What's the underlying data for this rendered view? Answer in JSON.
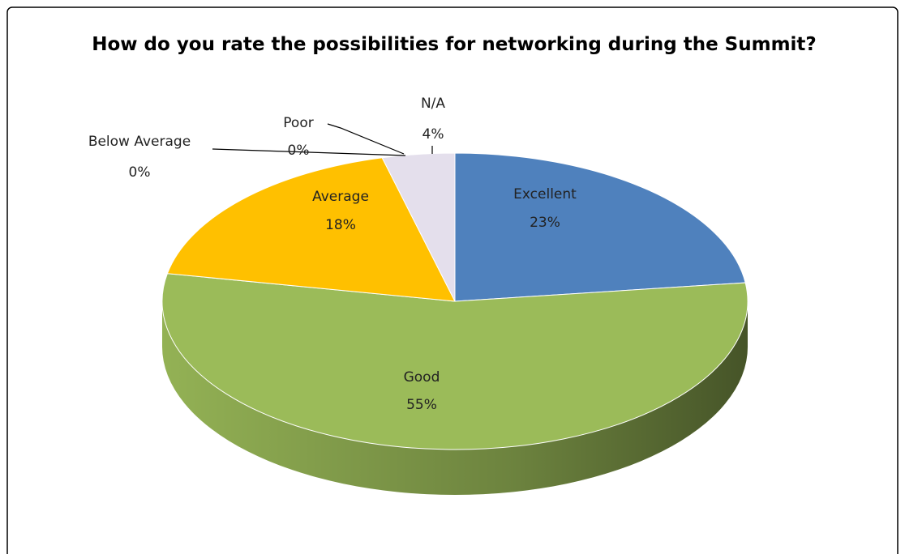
{
  "chart_data": {
    "type": "pie3d",
    "title": "How do you rate the possibilities for networking during the Summit?",
    "categories": [
      "Excellent",
      "Good",
      "Average",
      "Below Average",
      "Poor",
      "N/A"
    ],
    "values": [
      23,
      55,
      18,
      0,
      0,
      4
    ],
    "value_labels": [
      "23%",
      "55%",
      "18%",
      "0%",
      "0%",
      "4%"
    ],
    "colors": [
      "#4f81bd",
      "#9bbb59",
      "#ffc000",
      "#8064a2",
      "#4bacc6",
      "#e4dfec"
    ]
  }
}
